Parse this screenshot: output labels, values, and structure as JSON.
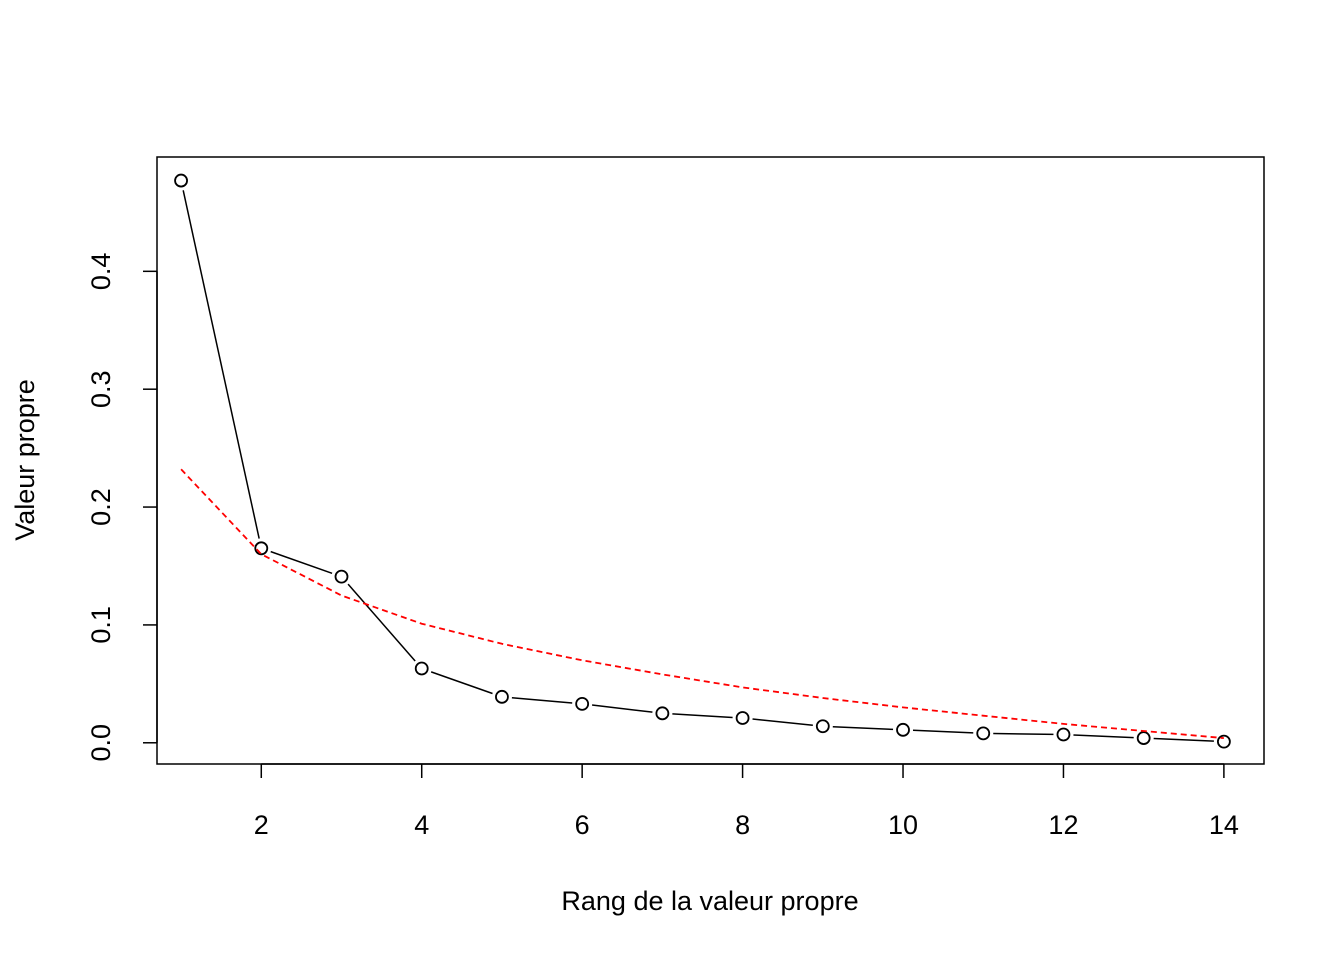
{
  "chart_data": {
    "type": "line",
    "title": "",
    "xlabel": "Rang de la valeur propre",
    "ylabel": "Valeur propre",
    "xlim": [
      0.7,
      14.5
    ],
    "ylim": [
      -0.018,
      0.497
    ],
    "grid": false,
    "x_ticks": [
      2,
      4,
      6,
      8,
      10,
      12,
      14
    ],
    "x_tick_labels": [
      "2",
      "4",
      "6",
      "8",
      "10",
      "12",
      "14"
    ],
    "y_ticks": [
      0.0,
      0.1,
      0.2,
      0.3,
      0.4
    ],
    "y_tick_labels": [
      "0.0",
      "0.1",
      "0.2",
      "0.3",
      "0.4"
    ],
    "series": [
      {
        "style": "points-and-lines",
        "color": "#000000",
        "x": [
          1,
          2,
          3,
          4,
          5,
          6,
          7,
          8,
          9,
          10,
          11,
          12,
          13,
          14
        ],
        "values": [
          0.477,
          0.165,
          0.141,
          0.063,
          0.039,
          0.033,
          0.025,
          0.021,
          0.014,
          0.011,
          0.008,
          0.007,
          0.004,
          0.001
        ]
      },
      {
        "style": "dashed-line",
        "color": "#ff0000",
        "x": [
          1,
          1.5,
          2,
          3,
          4,
          5,
          6,
          7,
          8,
          9,
          10,
          11,
          12,
          13,
          14
        ],
        "values": [
          0.232,
          0.196,
          0.16,
          0.125,
          0.101,
          0.084,
          0.07,
          0.058,
          0.047,
          0.038,
          0.03,
          0.023,
          0.016,
          0.01,
          0.004
        ]
      }
    ]
  }
}
